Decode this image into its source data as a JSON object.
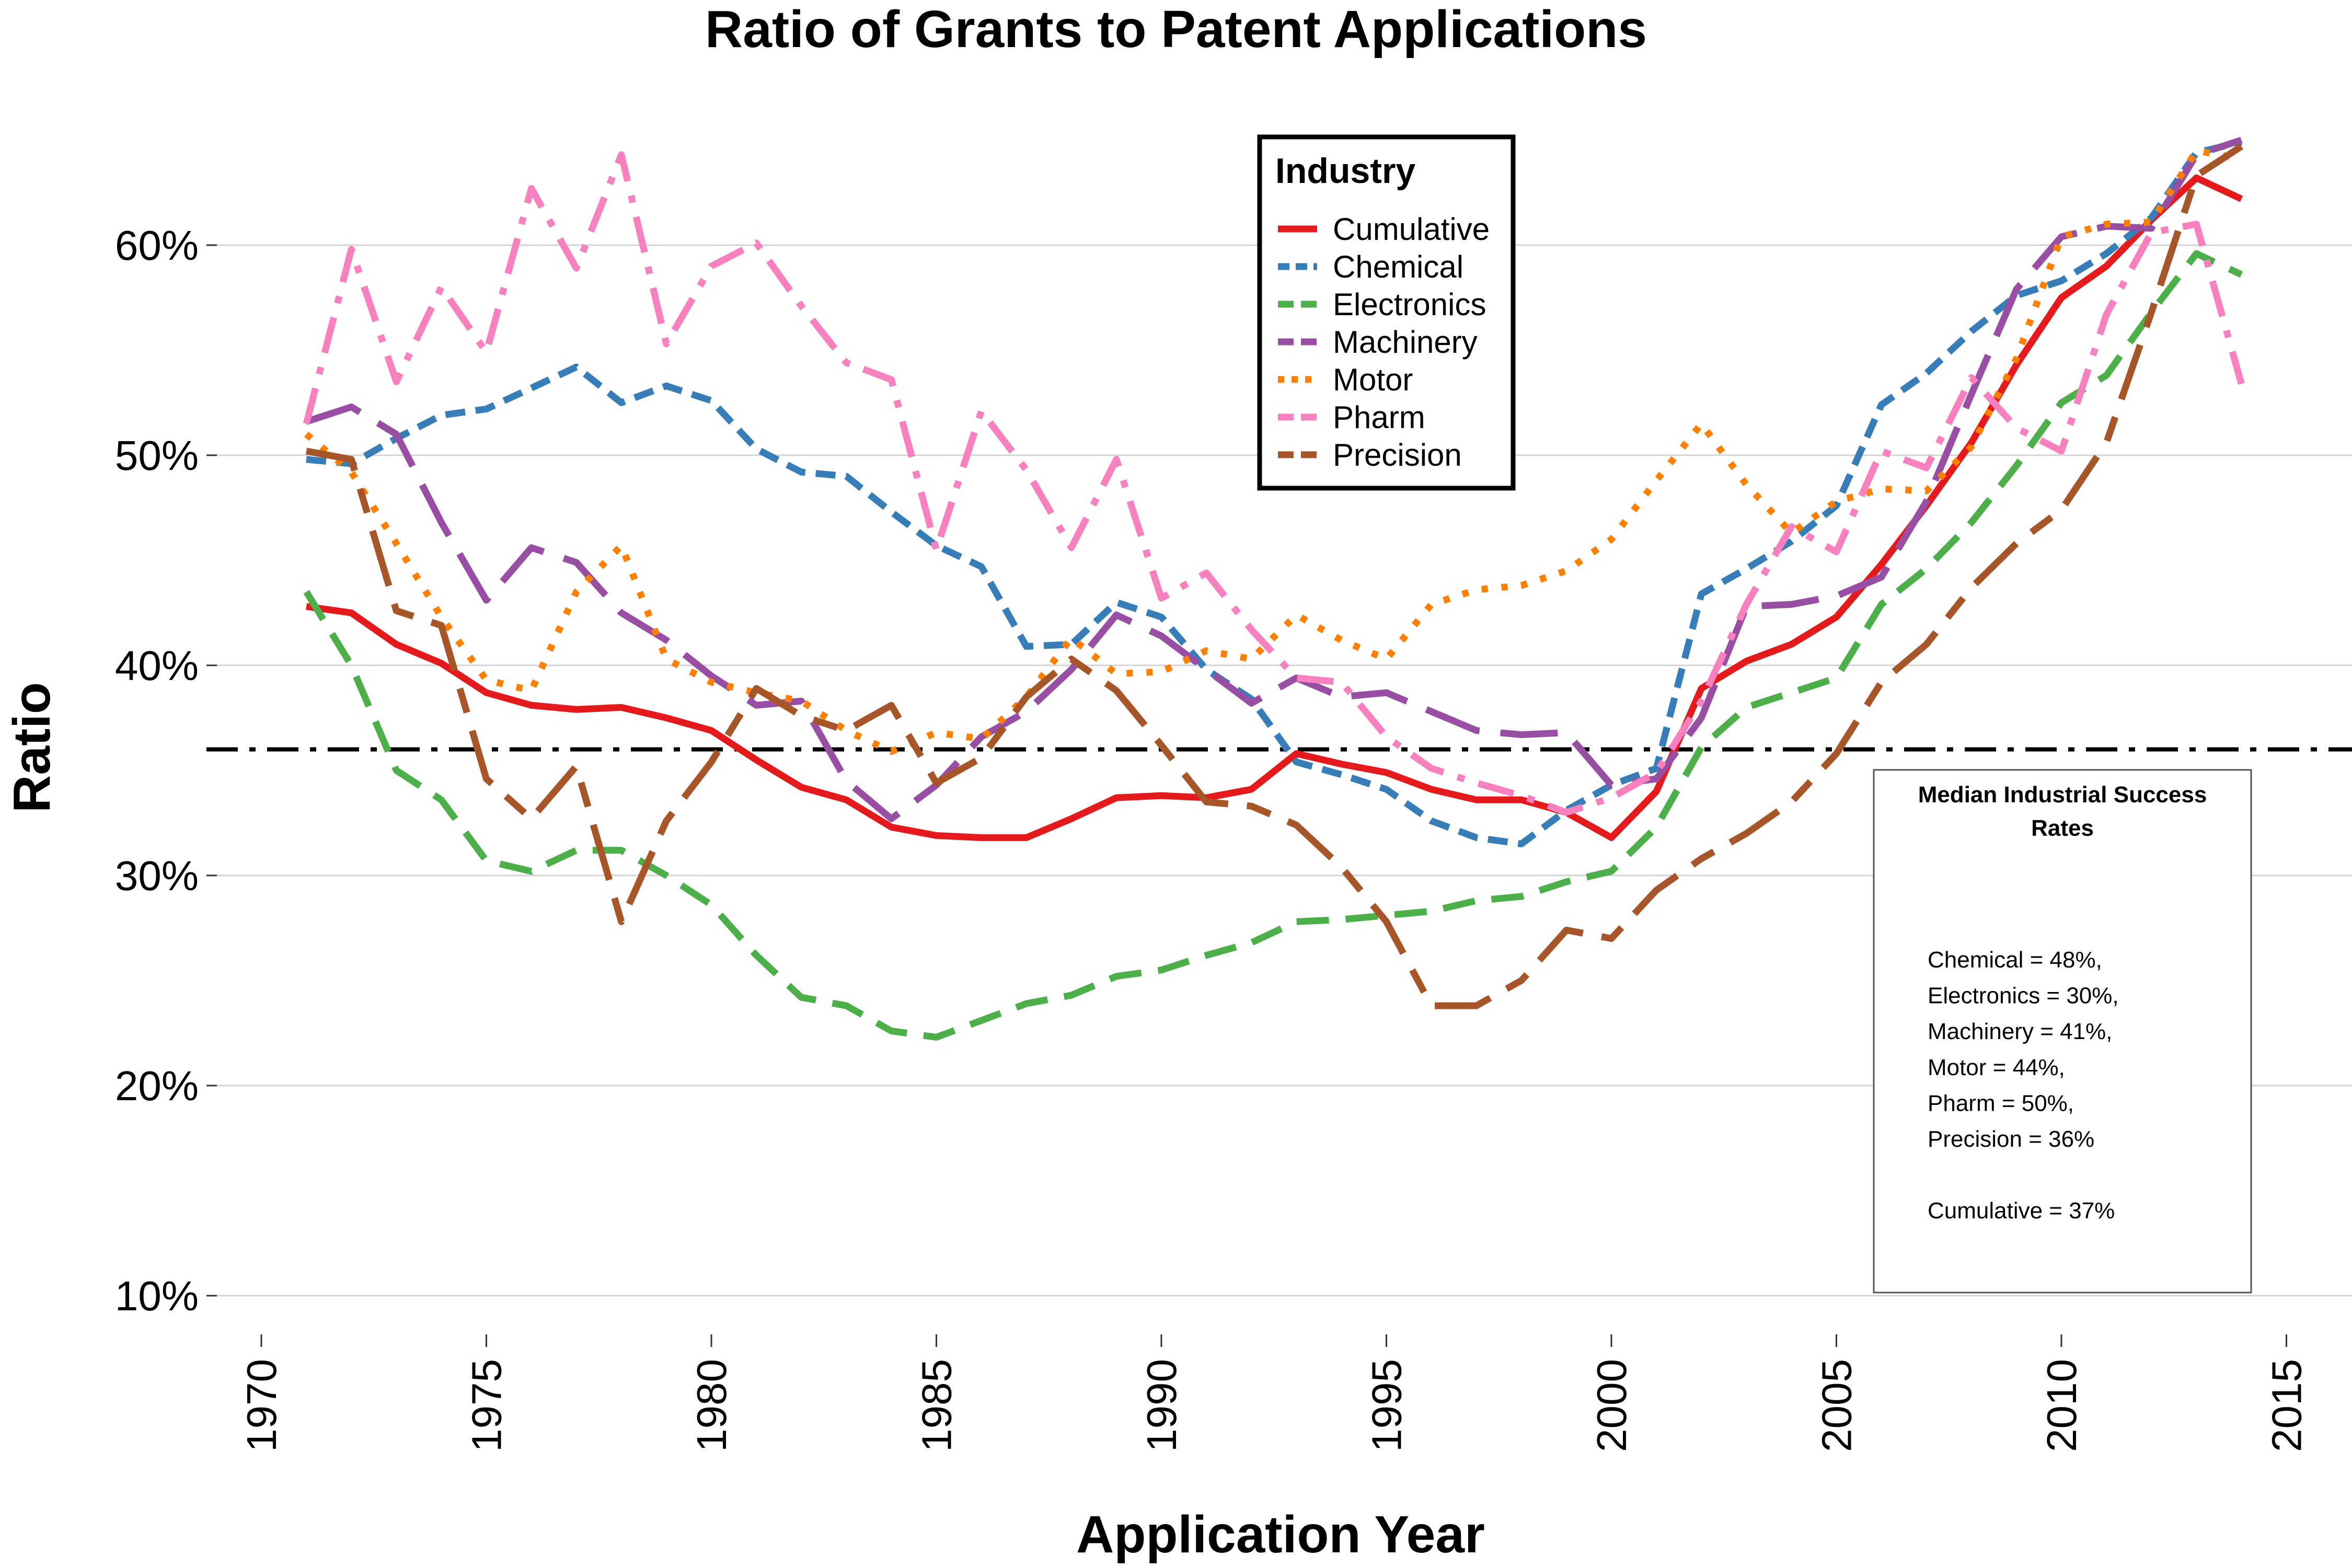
{
  "chart_data": {
    "type": "line",
    "title": "Ratio of Grants to Patent Applications",
    "xlabel": "Application Year",
    "ylabel": "Ratio",
    "xlim": [
      1968.8,
      2015.2
    ],
    "ylim": [
      8.5,
      67
    ],
    "x_ticks": [
      1970,
      1975,
      1980,
      1985,
      1990,
      1995,
      2000,
      2005,
      2010,
      2015
    ],
    "y_ticks": [
      10,
      20,
      30,
      40,
      50,
      60
    ],
    "y_tick_labels": [
      "10%",
      "20%",
      "30%",
      "40%",
      "50%",
      "60%"
    ],
    "grid": "horizontal",
    "reference_line": {
      "value": 36,
      "style": "dash-dot",
      "color": "#000000"
    },
    "legend": {
      "title": "Industry",
      "position": "top-center",
      "entries": [
        "Cumulative",
        "Chemical",
        "Electronics",
        "Machinery",
        "Motor",
        "Pharm",
        "Precision"
      ]
    },
    "x": [
      1971,
      1972,
      1973,
      1974,
      1975,
      1976,
      1977,
      1978,
      1979,
      1980,
      1981,
      1982,
      1983,
      1984,
      1985,
      1986,
      1987,
      1988,
      1989,
      1990,
      1991,
      1992,
      1993,
      1994,
      1995,
      1996,
      1997,
      1998,
      1999,
      2000,
      2001,
      2002,
      2003,
      2004,
      2005,
      2006,
      2007,
      2008,
      2009,
      2010,
      2011,
      2012,
      2013,
      2014
    ],
    "series": [
      {
        "name": "Cumulative",
        "color": "#E41A1C",
        "dash": "solid",
        "values": [
          42.8,
          42.5,
          41.0,
          40.1,
          38.7,
          38.1,
          37.9,
          38.0,
          37.5,
          36.9,
          35.5,
          34.2,
          33.6,
          32.3,
          31.9,
          31.8,
          31.8,
          32.7,
          33.7,
          33.8,
          33.7,
          34.1,
          35.8,
          35.3,
          34.9,
          34.1,
          33.6,
          33.6,
          33.0,
          31.8,
          34.0,
          38.9,
          40.2,
          41.0,
          42.3,
          44.8,
          47.6,
          50.6,
          54.3,
          57.5,
          59.0,
          61.2,
          63.2,
          62.2
        ]
      },
      {
        "name": "Chemical",
        "color": "#377EB8",
        "dash": "short",
        "values": [
          49.8,
          49.6,
          50.8,
          51.9,
          52.2,
          53.2,
          54.2,
          52.5,
          53.3,
          52.6,
          50.3,
          49.2,
          49.0,
          47.3,
          45.7,
          44.7,
          40.9,
          41.0,
          43.0,
          42.3,
          39.8,
          38.4,
          35.4,
          34.8,
          34.1,
          32.6,
          31.8,
          31.5,
          33.1,
          34.3,
          35.1,
          43.4,
          44.6,
          45.9,
          47.6,
          52.4,
          53.9,
          55.9,
          57.6,
          58.3,
          59.6,
          61.3,
          64.4,
          64.9
        ]
      },
      {
        "name": "Electronics",
        "color": "#4DAF4A",
        "dash": "dash",
        "values": [
          43.5,
          40.0,
          35.0,
          33.6,
          30.7,
          30.2,
          31.2,
          31.2,
          30.0,
          28.6,
          26.2,
          24.2,
          23.8,
          22.6,
          22.3,
          23.1,
          23.9,
          24.3,
          25.2,
          25.5,
          26.2,
          26.8,
          27.8,
          27.9,
          28.1,
          28.3,
          28.8,
          29.0,
          29.7,
          30.2,
          32.3,
          36.1,
          38.0,
          38.7,
          39.4,
          42.9,
          44.6,
          46.8,
          49.5,
          52.5,
          53.8,
          56.8,
          59.6,
          58.6
        ]
      },
      {
        "name": "Machinery",
        "color": "#984EA3",
        "dash": "longdash",
        "values": [
          51.6,
          52.3,
          51.0,
          46.8,
          43.1,
          45.6,
          44.9,
          42.5,
          41.2,
          39.5,
          38.1,
          38.3,
          34.5,
          32.7,
          34.3,
          36.6,
          37.8,
          39.8,
          42.4,
          41.4,
          39.8,
          38.2,
          39.4,
          38.5,
          38.7,
          37.8,
          36.9,
          36.7,
          36.8,
          34.3,
          34.6,
          37.5,
          42.8,
          42.9,
          43.3,
          44.2,
          47.8,
          52.9,
          57.9,
          60.4,
          60.9,
          60.8,
          64.3,
          65.0
        ]
      },
      {
        "name": "Motor",
        "color": "#FF7F00",
        "dash": "dotted",
        "values": [
          51.0,
          49.2,
          45.8,
          42.3,
          39.3,
          38.8,
          43.5,
          45.7,
          40.3,
          39.2,
          38.7,
          38.3,
          36.9,
          35.9,
          36.8,
          36.5,
          38.5,
          41.3,
          39.6,
          39.7,
          40.7,
          40.3,
          42.4,
          41.2,
          40.3,
          42.9,
          43.6,
          43.8,
          44.5,
          46.0,
          48.8,
          51.5,
          48.6,
          46.3,
          47.8,
          48.4,
          48.3,
          50.4,
          54.6,
          60.4,
          61.0,
          61.1,
          64.5,
          64.1
        ]
      },
      {
        "name": "Pharm",
        "color": "#F781BF",
        "dash": "dashdot",
        "values": [
          51.5,
          59.8,
          53.5,
          58.0,
          54.9,
          62.7,
          58.9,
          64.3,
          55.3,
          59.0,
          60.1,
          57.1,
          54.4,
          53.6,
          45.5,
          52.1,
          49.3,
          45.6,
          49.8,
          43.2,
          44.4,
          41.7,
          39.4,
          39.2,
          36.6,
          35.1,
          34.4,
          33.8,
          33.0,
          33.7,
          34.9,
          38.3,
          42.9,
          46.6,
          45.4,
          50.2,
          49.4,
          53.7,
          51.3,
          50.2,
          56.7,
          60.6,
          61.0,
          53.4
        ]
      },
      {
        "name": "Precision",
        "color": "#A65628",
        "dash": "twodash",
        "values": [
          50.2,
          49.8,
          42.6,
          41.9,
          34.6,
          32.7,
          35.2,
          27.8,
          32.6,
          35.4,
          38.9,
          37.6,
          36.9,
          38.1,
          34.4,
          35.6,
          38.5,
          40.3,
          38.8,
          36.2,
          33.5,
          33.3,
          32.4,
          30.4,
          27.8,
          23.8,
          23.8,
          25.0,
          27.4,
          27.0,
          29.3,
          30.8,
          32.0,
          33.5,
          35.8,
          39.2,
          41.0,
          43.7,
          45.8,
          47.4,
          50.6,
          56.8,
          63.3,
          64.7
        ]
      }
    ],
    "annotation_box": {
      "title_lines": [
        "Median Industrial Success",
        "Rates"
      ],
      "lines": [
        "Chemical = 48%,",
        "Electronics = 30%,",
        "Machinery = 41%,",
        "Motor = 44%,",
        "Pharm = 50%,",
        "Precision = 36%",
        "",
        "Cumulative = 37%"
      ]
    }
  }
}
